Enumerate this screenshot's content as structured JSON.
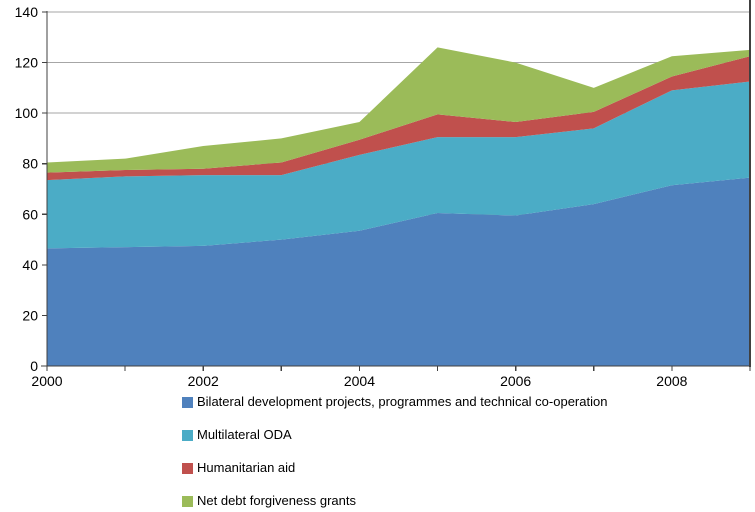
{
  "chart_data": {
    "type": "area",
    "stacked": true,
    "title": "",
    "xlabel": "",
    "ylabel": "",
    "x": [
      2000,
      2001,
      2002,
      2003,
      2004,
      2005,
      2006,
      2007,
      2008,
      2009
    ],
    "x_axis_labels": [
      "2000",
      "2002",
      "2004",
      "2006",
      "2008"
    ],
    "y_ticks": [
      0,
      20,
      40,
      60,
      80,
      100,
      120,
      140
    ],
    "ylim": [
      0,
      140
    ],
    "grid": true,
    "legend_position": "bottom-left",
    "series": [
      {
        "name": "Bilateral development projects, programmes and technical co-operation",
        "color": "#4F81BD",
        "values": [
          46.5,
          47,
          47.5,
          50,
          53.5,
          60.5,
          59.5,
          64,
          71.5,
          74.5
        ]
      },
      {
        "name": "Multilateral ODA",
        "color": "#4BACC6",
        "values": [
          27,
          28,
          28,
          25.5,
          30,
          30,
          31,
          30,
          37.5,
          38
        ]
      },
      {
        "name": "Humanitarian aid",
        "color": "#C0504D",
        "values": [
          3,
          2.5,
          2.5,
          5,
          6,
          9,
          6,
          6.5,
          5.5,
          10
        ]
      },
      {
        "name": "Net debt forgiveness grants",
        "color": "#9BBB59",
        "values": [
          4,
          4.5,
          9,
          9.5,
          7,
          26.5,
          23.5,
          9.5,
          8,
          2.5
        ]
      }
    ],
    "colors": {
      "background": "#FFFFFF",
      "gridline": "#A6A6A6",
      "axis": "#404040",
      "text": "#000000"
    }
  }
}
